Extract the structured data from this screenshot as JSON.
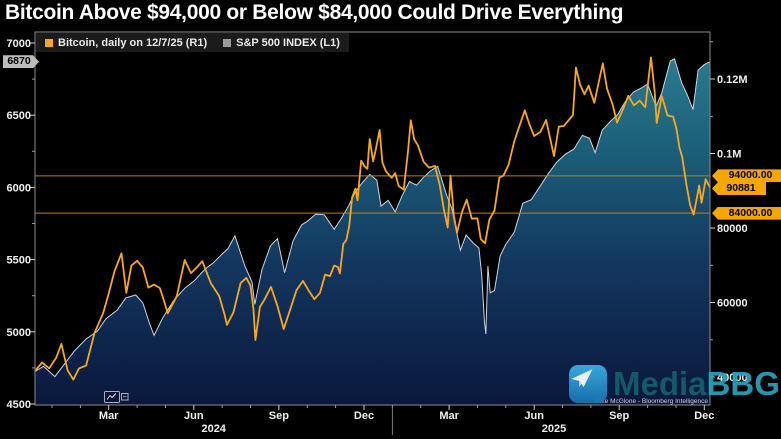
{
  "title": "Bitcoin Above $94,000 or Below $84,000 Could Drive Everything",
  "legend": {
    "items": [
      {
        "label": "Bitcoin, daily on 12/7/25 (R1)",
        "color": "#f8a81c"
      },
      {
        "label": "S&P 500 INDEX (L1)",
        "color": "#9b9b9b"
      }
    ]
  },
  "annotations": {
    "sp500_last": {
      "value": 6870,
      "label": "6870"
    },
    "bitcoin_last": {
      "value": 90881,
      "label": "90881"
    },
    "thresholds": [
      {
        "value": 94000,
        "label": "94000.00"
      },
      {
        "value": 84000,
        "label": "84000.00"
      }
    ]
  },
  "footnote": "Mike McGlone - Bloomberg Intelligence",
  "watermark": {
    "icon": "paper-plane-icon",
    "text_primary": "Media",
    "text_secondary": "BBG",
    "color_primary": "#145f6e",
    "color_secondary": "#27a3bd",
    "icon_color_top": "#3bb3e8",
    "icon_color_bottom": "#1a74b4"
  },
  "colors": {
    "background": "#000000",
    "bitcoin_line": "#f7a821",
    "threshold_line": "#bf7d1a",
    "sp500_edge": "#c9d4dd",
    "area_gradient": [
      "#2f8296",
      "#1c617a",
      "#13375f",
      "#0a173c"
    ],
    "badge_orange": "#f7a600",
    "badge_gray": "#bdbdbd",
    "axis_text": "#f0f0f0",
    "frame": "#8c8c8c",
    "legend_bg": "#1b1b1b"
  },
  "chart_data": {
    "type": "line+area",
    "title": "Bitcoin Above $94,000 or Below $84,000 Could Drive Everything",
    "x_unit": "months since 2024-01-01",
    "xlim": [
      -0.6,
      23.2
    ],
    "x_axis": {
      "major_ticks": [
        {
          "t": 2,
          "label": "Mar"
        },
        {
          "t": 5,
          "label": "Jun"
        },
        {
          "t": 8,
          "label": "Sep"
        },
        {
          "t": 11,
          "label": "Dec"
        },
        {
          "t": 14,
          "label": "Mar"
        },
        {
          "t": 17,
          "label": "Jun"
        },
        {
          "t": 20,
          "label": "Sep"
        },
        {
          "t": 23,
          "label": "Dec"
        }
      ],
      "minor_tick_step_months": 1,
      "year_labels": [
        {
          "t": 5.7,
          "label": "2024"
        },
        {
          "t": 17.7,
          "label": "2025"
        }
      ],
      "year_divider_t": 12
    },
    "left_axis": {
      "name": "S&P 500 INDEX (L1)",
      "ylim": [
        4493,
        7076
      ],
      "major_ticks": [
        7000,
        6500,
        6000,
        5500,
        5000,
        4500
      ],
      "minor_ticks": [
        6750,
        6250,
        5750,
        5250,
        4750
      ]
    },
    "right_axis": {
      "name": "Bitcoin (R1)",
      "ylim": [
        32485,
        132617
      ],
      "major_ticks": [
        {
          "v": 120000,
          "label": "0.12M"
        },
        {
          "v": 100000,
          "label": "0.1M"
        },
        {
          "v": 80000,
          "label": "80000"
        },
        {
          "v": 60000,
          "label": "60000"
        },
        {
          "v": 40000,
          "label": "40000"
        }
      ],
      "minor_ticks": [
        130000,
        110000,
        70000,
        50000
      ]
    },
    "series": [
      {
        "name": "S&P 500 INDEX",
        "axis": "L1",
        "style": "area",
        "points": [
          [
            -0.6,
            4725
          ],
          [
            -0.3,
            4760
          ],
          [
            0.1,
            4690
          ],
          [
            0.45,
            4780
          ],
          [
            0.8,
            4870
          ],
          [
            1.2,
            4950
          ],
          [
            1.6,
            5005
          ],
          [
            1.9,
            5090
          ],
          [
            2.3,
            5150
          ],
          [
            2.6,
            5235
          ],
          [
            2.95,
            5255
          ],
          [
            3.2,
            5200
          ],
          [
            3.45,
            5050
          ],
          [
            3.6,
            4975
          ],
          [
            3.9,
            5095
          ],
          [
            4.3,
            5220
          ],
          [
            4.7,
            5305
          ],
          [
            5.0,
            5350
          ],
          [
            5.4,
            5435
          ],
          [
            5.7,
            5480
          ],
          [
            5.95,
            5530
          ],
          [
            6.2,
            5575
          ],
          [
            6.45,
            5665
          ],
          [
            6.8,
            5455
          ],
          [
            7.05,
            5345
          ],
          [
            7.15,
            5190
          ],
          [
            7.4,
            5430
          ],
          [
            7.7,
            5595
          ],
          [
            7.95,
            5645
          ],
          [
            8.2,
            5410
          ],
          [
            8.5,
            5630
          ],
          [
            8.8,
            5740
          ],
          [
            9.0,
            5765
          ],
          [
            9.3,
            5815
          ],
          [
            9.6,
            5810
          ],
          [
            9.95,
            5710
          ],
          [
            10.2,
            5785
          ],
          [
            10.45,
            5870
          ],
          [
            10.7,
            5970
          ],
          [
            10.95,
            6035
          ],
          [
            11.2,
            6090
          ],
          [
            11.45,
            6050
          ],
          [
            11.6,
            5870
          ],
          [
            11.85,
            5910
          ],
          [
            12.1,
            5830
          ],
          [
            12.35,
            5945
          ],
          [
            12.6,
            6040
          ],
          [
            12.85,
            6015
          ],
          [
            13.1,
            6070
          ],
          [
            13.35,
            6115
          ],
          [
            13.6,
            6145
          ],
          [
            13.9,
            5955
          ],
          [
            14.1,
            5850
          ],
          [
            14.4,
            5565
          ],
          [
            14.6,
            5670
          ],
          [
            14.85,
            5615
          ],
          [
            15.05,
            5580
          ],
          [
            15.15,
            5395
          ],
          [
            15.25,
            5065
          ],
          [
            15.3,
            4985
          ],
          [
            15.37,
            5455
          ],
          [
            15.45,
            5270
          ],
          [
            15.6,
            5285
          ],
          [
            15.8,
            5525
          ],
          [
            16.0,
            5605
          ],
          [
            16.3,
            5690
          ],
          [
            16.6,
            5890
          ],
          [
            16.9,
            5915
          ],
          [
            17.2,
            6005
          ],
          [
            17.5,
            6095
          ],
          [
            17.8,
            6175
          ],
          [
            18.1,
            6230
          ],
          [
            18.4,
            6265
          ],
          [
            18.7,
            6360
          ],
          [
            18.95,
            6340
          ],
          [
            19.15,
            6240
          ],
          [
            19.4,
            6395
          ],
          [
            19.7,
            6460
          ],
          [
            19.95,
            6505
          ],
          [
            20.2,
            6590
          ],
          [
            20.5,
            6660
          ],
          [
            20.8,
            6690
          ],
          [
            21.0,
            6715
          ],
          [
            21.3,
            6560
          ],
          [
            21.5,
            6655
          ],
          [
            21.8,
            6875
          ],
          [
            21.95,
            6890
          ],
          [
            22.2,
            6725
          ],
          [
            22.4,
            6640
          ],
          [
            22.6,
            6539
          ],
          [
            22.78,
            6812
          ],
          [
            23.0,
            6850
          ],
          [
            23.2,
            6870
          ]
        ]
      },
      {
        "name": "Bitcoin",
        "axis": "R1",
        "style": "line",
        "points": [
          [
            -0.6,
            41600
          ],
          [
            -0.35,
            43900
          ],
          [
            -0.1,
            42300
          ],
          [
            0.15,
            45200
          ],
          [
            0.33,
            48900
          ],
          [
            0.55,
            41800
          ],
          [
            0.75,
            39300
          ],
          [
            0.95,
            42300
          ],
          [
            1.2,
            43100
          ],
          [
            1.5,
            51900
          ],
          [
            1.8,
            57100
          ],
          [
            2.0,
            62400
          ],
          [
            2.2,
            68300
          ],
          [
            2.45,
            73200
          ],
          [
            2.62,
            62600
          ],
          [
            2.8,
            69900
          ],
          [
            3.0,
            71200
          ],
          [
            3.2,
            69400
          ],
          [
            3.4,
            64000
          ],
          [
            3.6,
            64800
          ],
          [
            3.8,
            63900
          ],
          [
            3.95,
            60500
          ],
          [
            4.08,
            57100
          ],
          [
            4.4,
            61700
          ],
          [
            4.68,
            71400
          ],
          [
            4.9,
            67900
          ],
          [
            5.1,
            69400
          ],
          [
            5.3,
            71100
          ],
          [
            5.6,
            65200
          ],
          [
            5.9,
            61700
          ],
          [
            6.08,
            56800
          ],
          [
            6.17,
            54000
          ],
          [
            6.4,
            57400
          ],
          [
            6.65,
            65200
          ],
          [
            6.85,
            66600
          ],
          [
            7.0,
            64500
          ],
          [
            7.1,
            58400
          ],
          [
            7.17,
            49900
          ],
          [
            7.33,
            58800
          ],
          [
            7.5,
            60900
          ],
          [
            7.72,
            64200
          ],
          [
            7.95,
            59000
          ],
          [
            8.17,
            52900
          ],
          [
            8.4,
            58200
          ],
          [
            8.62,
            63300
          ],
          [
            8.85,
            65800
          ],
          [
            9.05,
            63200
          ],
          [
            9.25,
            60900
          ],
          [
            9.45,
            62600
          ],
          [
            9.63,
            67500
          ],
          [
            9.8,
            67100
          ],
          [
            9.95,
            69900
          ],
          [
            10.08,
            69500
          ],
          [
            10.15,
            67800
          ],
          [
            10.27,
            75700
          ],
          [
            10.38,
            76800
          ],
          [
            10.48,
            80500
          ],
          [
            10.58,
            88200
          ],
          [
            10.7,
            90600
          ],
          [
            10.77,
            87400
          ],
          [
            10.9,
            98100
          ],
          [
            11.02,
            96500
          ],
          [
            11.12,
            95900
          ],
          [
            11.2,
            103900
          ],
          [
            11.32,
            97900
          ],
          [
            11.42,
            101200
          ],
          [
            11.55,
            106300
          ],
          [
            11.65,
            97600
          ],
          [
            11.77,
            95300
          ],
          [
            11.88,
            94300
          ],
          [
            11.98,
            93500
          ],
          [
            12.1,
            94700
          ],
          [
            12.22,
            91300
          ],
          [
            12.4,
            90300
          ],
          [
            12.55,
            100600
          ],
          [
            12.65,
            108900
          ],
          [
            12.77,
            103800
          ],
          [
            12.9,
            102200
          ],
          [
            13.1,
            97800
          ],
          [
            13.3,
            96200
          ],
          [
            13.5,
            96700
          ],
          [
            13.67,
            91600
          ],
          [
            13.82,
            84800
          ],
          [
            13.95,
            80100
          ],
          [
            14.05,
            94100
          ],
          [
            14.17,
            83200
          ],
          [
            14.28,
            78700
          ],
          [
            14.45,
            84100
          ],
          [
            14.62,
            87600
          ],
          [
            14.8,
            82500
          ],
          [
            15.0,
            82600
          ],
          [
            15.12,
            77000
          ],
          [
            15.27,
            75900
          ],
          [
            15.42,
            82200
          ],
          [
            15.6,
            84700
          ],
          [
            15.77,
            93500
          ],
          [
            15.92,
            94100
          ],
          [
            16.1,
            97000
          ],
          [
            16.3,
            103300
          ],
          [
            16.67,
            111600
          ],
          [
            16.83,
            107900
          ],
          [
            17.0,
            104700
          ],
          [
            17.22,
            105800
          ],
          [
            17.42,
            109000
          ],
          [
            17.7,
            99300
          ],
          [
            17.87,
            107200
          ],
          [
            18.05,
            107400
          ],
          [
            18.22,
            109000
          ],
          [
            18.37,
            110300
          ],
          [
            18.47,
            123100
          ],
          [
            18.62,
            118500
          ],
          [
            18.77,
            115900
          ],
          [
            18.92,
            118200
          ],
          [
            19.12,
            113600
          ],
          [
            19.42,
            124200
          ],
          [
            19.57,
            117400
          ],
          [
            19.77,
            113100
          ],
          [
            19.92,
            108300
          ],
          [
            20.12,
            111600
          ],
          [
            20.32,
            115500
          ],
          [
            20.52,
            112900
          ],
          [
            20.72,
            114200
          ],
          [
            20.92,
            112400
          ],
          [
            21.12,
            125800
          ],
          [
            21.25,
            116500
          ],
          [
            21.32,
            108200
          ],
          [
            21.5,
            115400
          ],
          [
            21.7,
            110200
          ],
          [
            21.9,
            109900
          ],
          [
            22.02,
            106600
          ],
          [
            22.12,
            101600
          ],
          [
            22.22,
            99100
          ],
          [
            22.37,
            91500
          ],
          [
            22.5,
            86200
          ],
          [
            22.62,
            83600
          ],
          [
            22.72,
            87400
          ],
          [
            22.82,
            91400
          ],
          [
            22.9,
            86800
          ],
          [
            23.05,
            93100
          ],
          [
            23.2,
            90881
          ]
        ]
      }
    ],
    "horizontal_lines": [
      94000,
      84000
    ],
    "legend_position": "top-left",
    "grid": false
  }
}
